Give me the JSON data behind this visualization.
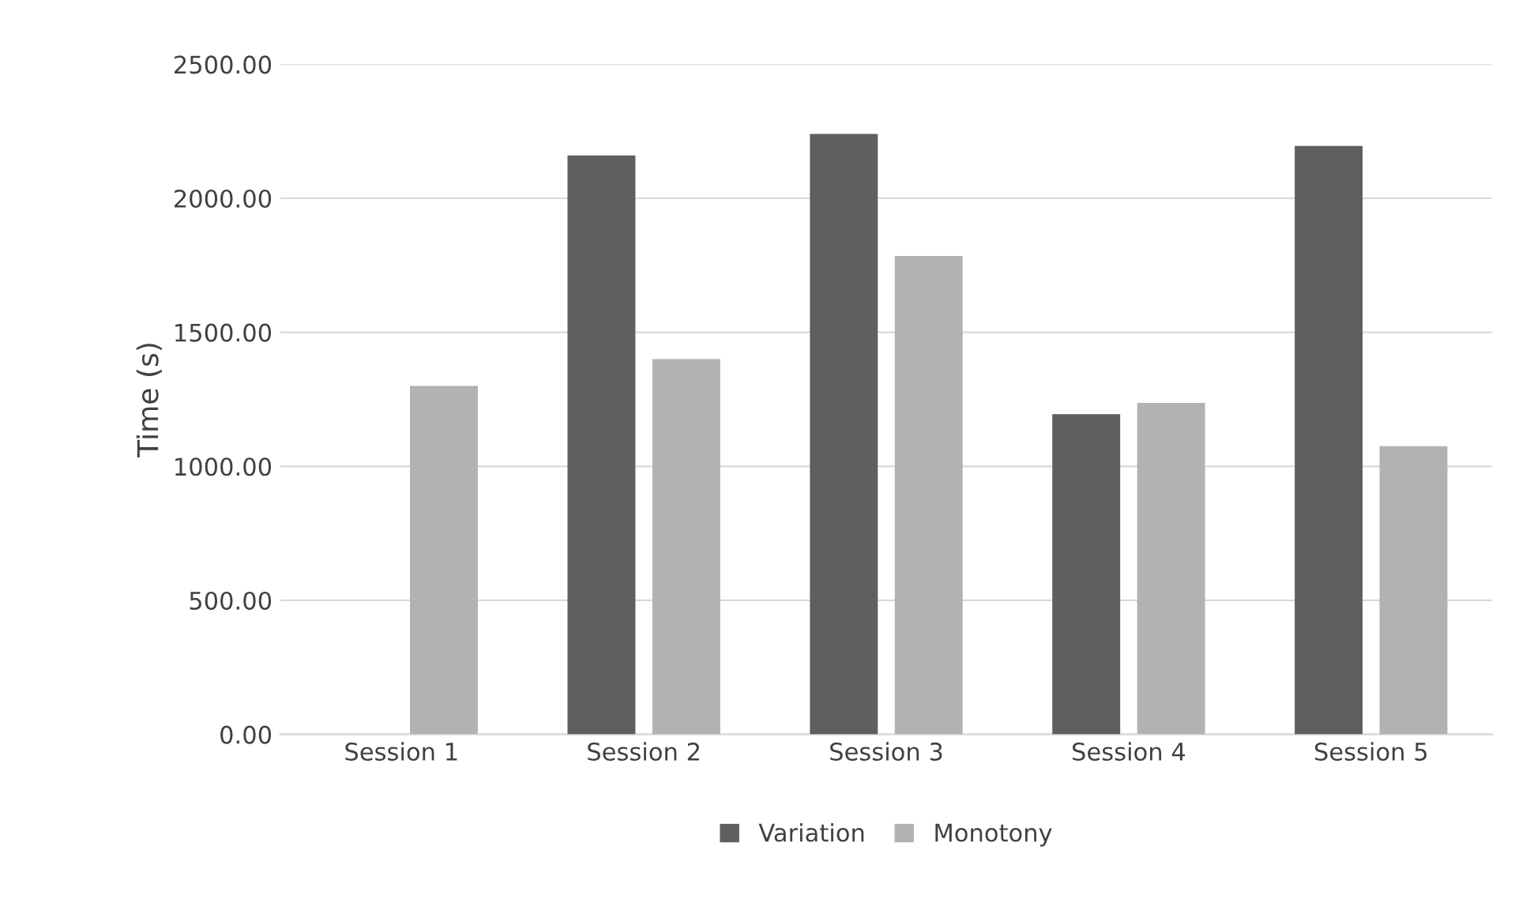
{
  "chart_data": {
    "type": "bar",
    "ylabel": "Time (s)",
    "categories": [
      "Session 1",
      "Session 2",
      "Session 3",
      "Session 4",
      "Session 5"
    ],
    "series": [
      {
        "name": "Variation",
        "color": "#5f5f5f",
        "values": [
          null,
          2160,
          2240,
          1195,
          2195
        ]
      },
      {
        "name": "Monotony",
        "color": "#b2b2b2",
        "values": [
          1300,
          1400,
          1785,
          1237,
          1075
        ]
      }
    ],
    "ylim": [
      0,
      2500
    ],
    "yticks": [
      {
        "value": 0,
        "label": "0.00"
      },
      {
        "value": 500,
        "label": "500.00"
      },
      {
        "value": 1000,
        "label": "1000.00"
      },
      {
        "value": 1500,
        "label": "1500.00"
      },
      {
        "value": 2000,
        "label": "2000.00"
      },
      {
        "value": 2500,
        "label": "2500.00"
      }
    ],
    "grid": "y",
    "legend": "bottom"
  }
}
